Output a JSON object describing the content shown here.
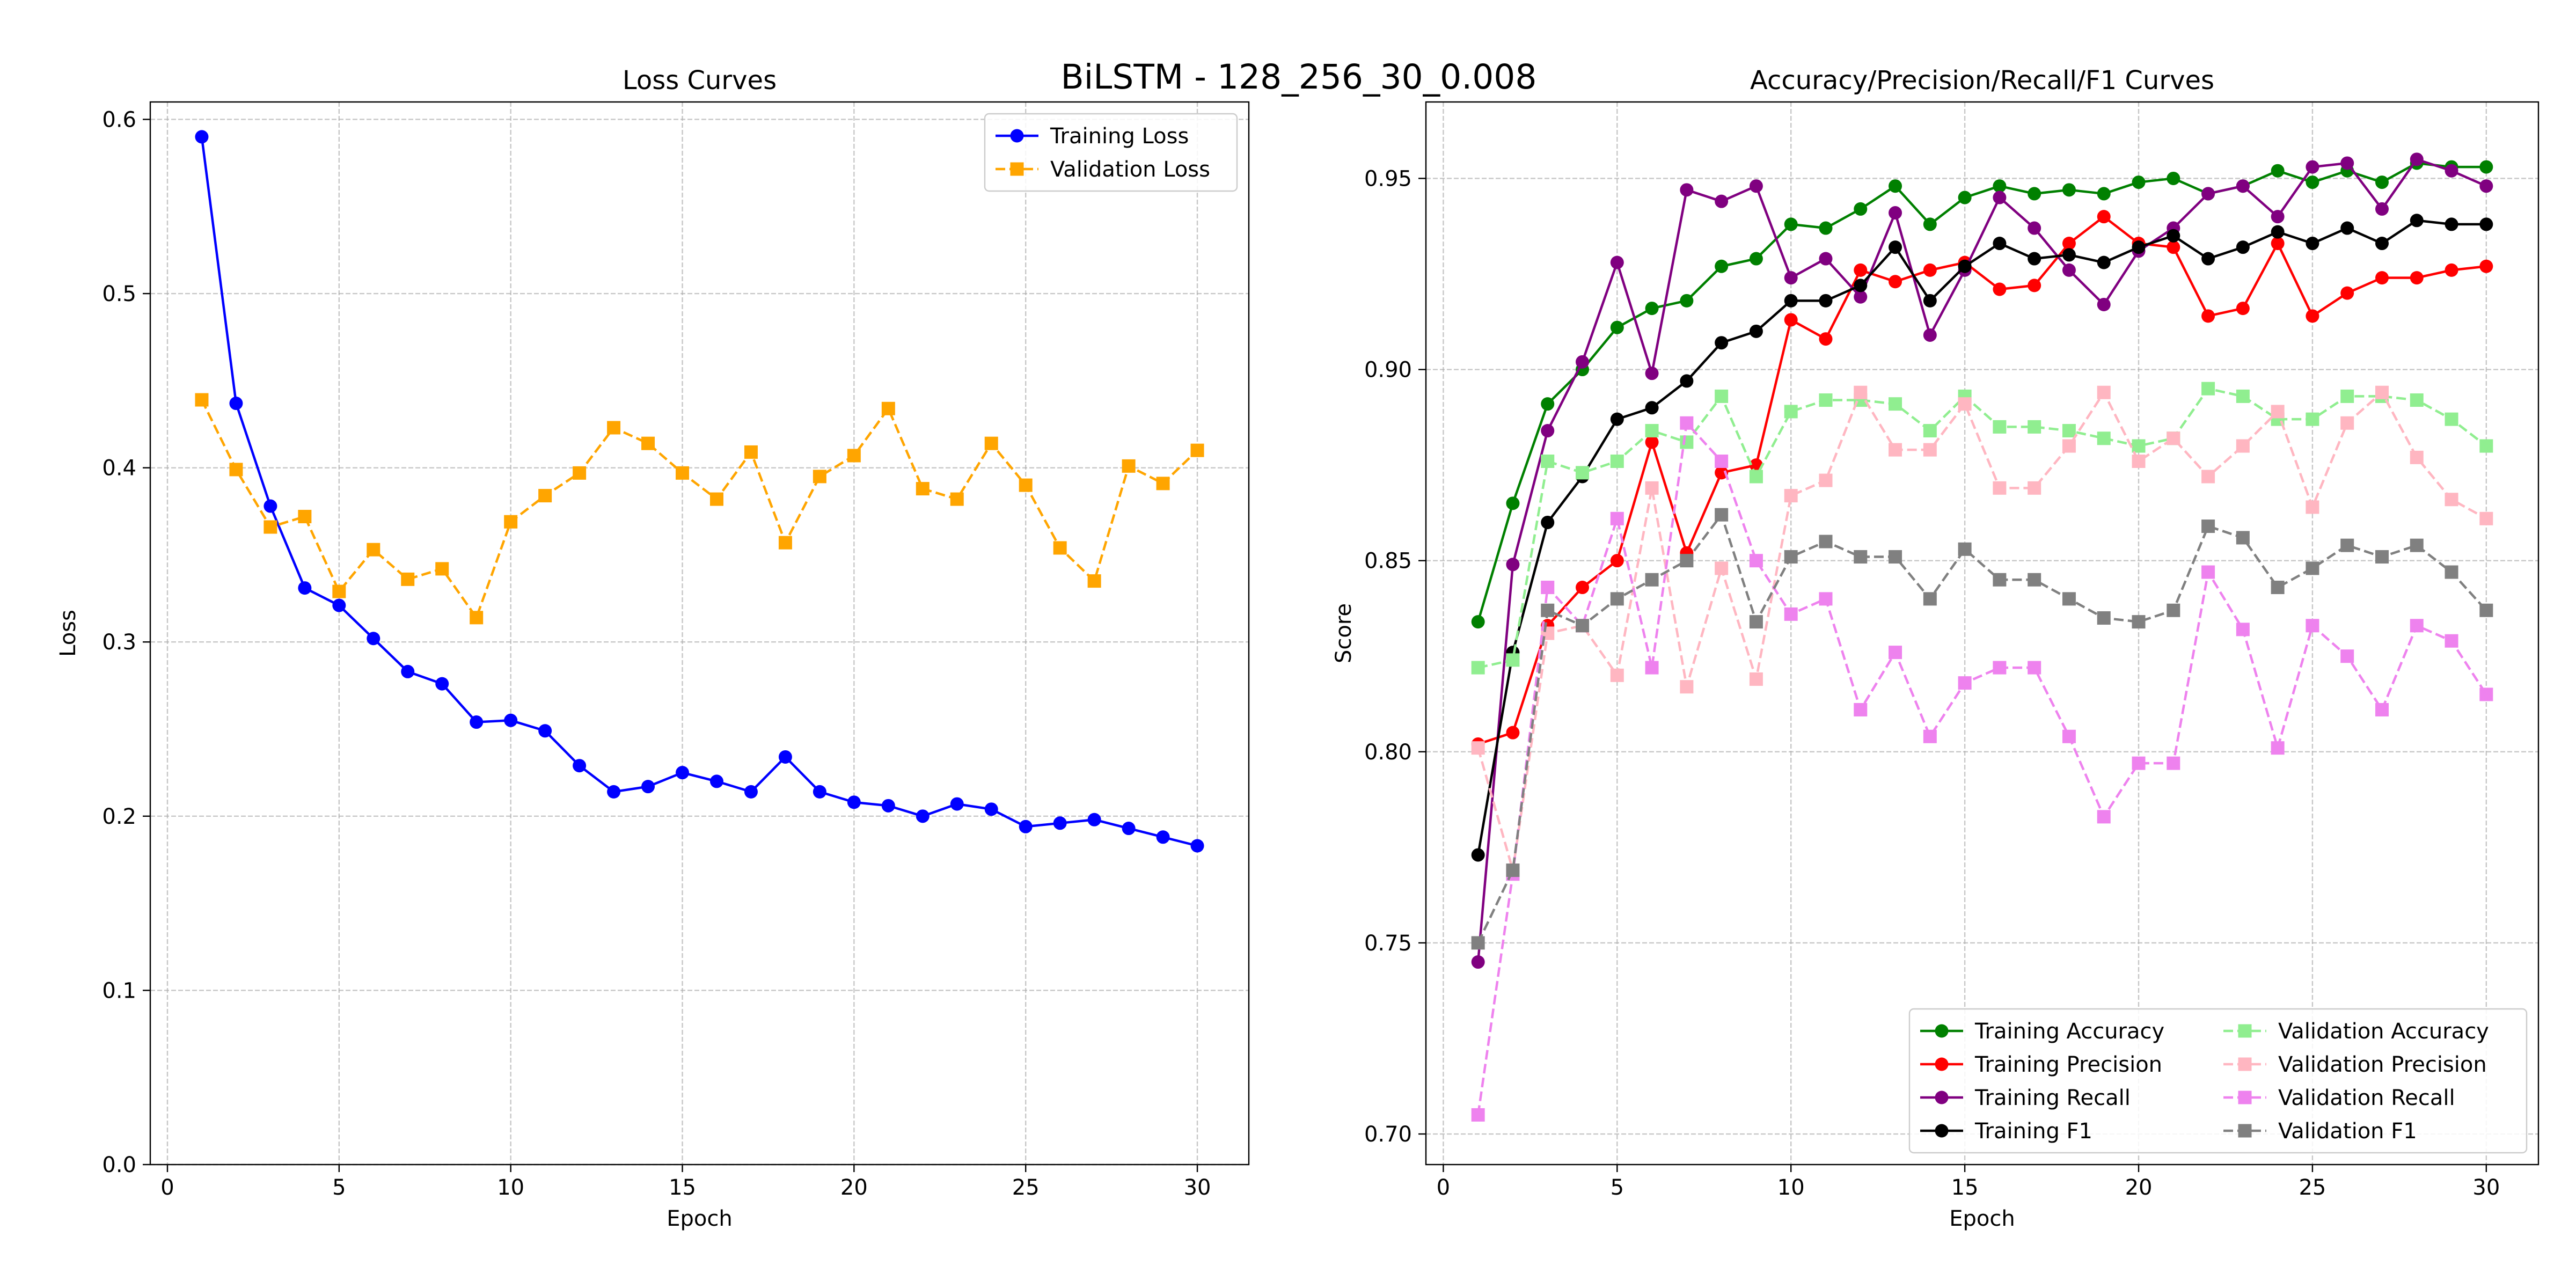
{
  "figure": {
    "suptitle": "BiLSTM - 128_256_30_0.008"
  },
  "chart_data": [
    {
      "type": "line",
      "title": "Loss Curves",
      "xlabel": "Epoch",
      "ylabel": "Loss",
      "xlim": [
        -0.5,
        31.5
      ],
      "ylim": [
        0.0,
        0.61
      ],
      "xticks": [
        0,
        5,
        10,
        15,
        20,
        25,
        30
      ],
      "yticks": [
        0.0,
        0.1,
        0.2,
        0.3,
        0.4,
        0.5,
        0.6
      ],
      "ytick_labels": [
        "0.0",
        "0.1",
        "0.2",
        "0.3",
        "0.4",
        "0.5",
        "0.6"
      ],
      "grid": true,
      "legend_position": "upper-right",
      "legend_columns": 1,
      "x": [
        1,
        2,
        3,
        4,
        5,
        6,
        7,
        8,
        9,
        10,
        11,
        12,
        13,
        14,
        15,
        16,
        17,
        18,
        19,
        20,
        21,
        22,
        23,
        24,
        25,
        26,
        27,
        28,
        29,
        30
      ],
      "series": [
        {
          "name": "Training Loss",
          "color": "#0000ff",
          "marker": "circle",
          "line_style": "solid",
          "values": [
            0.59,
            0.437,
            0.378,
            0.331,
            0.321,
            0.302,
            0.283,
            0.276,
            0.254,
            0.255,
            0.249,
            0.229,
            0.214,
            0.217,
            0.225,
            0.22,
            0.214,
            0.234,
            0.214,
            0.208,
            0.206,
            0.2,
            0.207,
            0.204,
            0.194,
            0.196,
            0.198,
            0.193,
            0.188,
            0.183
          ]
        },
        {
          "name": "Validation Loss",
          "color": "#ffa500",
          "marker": "square",
          "line_style": "dashed",
          "values": [
            0.439,
            0.399,
            0.366,
            0.372,
            0.329,
            0.353,
            0.336,
            0.342,
            0.314,
            0.369,
            0.384,
            0.397,
            0.423,
            0.414,
            0.397,
            0.382,
            0.409,
            0.357,
            0.395,
            0.407,
            0.434,
            0.388,
            0.382,
            0.414,
            0.39,
            0.354,
            0.335,
            0.401,
            0.391,
            0.41
          ]
        }
      ]
    },
    {
      "type": "line",
      "title": "Accuracy/Precision/Recall/F1 Curves",
      "xlabel": "Epoch",
      "ylabel": "Score",
      "xlim": [
        -0.5,
        31.5
      ],
      "ylim": [
        0.692,
        0.97
      ],
      "xticks": [
        0,
        5,
        10,
        15,
        20,
        25,
        30
      ],
      "yticks": [
        0.7,
        0.75,
        0.8,
        0.85,
        0.9,
        0.95
      ],
      "ytick_labels": [
        "0.70",
        "0.75",
        "0.80",
        "0.85",
        "0.90",
        "0.95"
      ],
      "grid": true,
      "legend_position": "lower-right",
      "legend_columns": 2,
      "x": [
        1,
        2,
        3,
        4,
        5,
        6,
        7,
        8,
        9,
        10,
        11,
        12,
        13,
        14,
        15,
        16,
        17,
        18,
        19,
        20,
        21,
        22,
        23,
        24,
        25,
        26,
        27,
        28,
        29,
        30
      ],
      "series": [
        {
          "name": "Training Accuracy",
          "color": "#008000",
          "marker": "circle",
          "line_style": "solid",
          "values": [
            0.834,
            0.865,
            0.891,
            0.9,
            0.911,
            0.916,
            0.918,
            0.927,
            0.929,
            0.938,
            0.937,
            0.942,
            0.948,
            0.938,
            0.945,
            0.948,
            0.946,
            0.947,
            0.946,
            0.949,
            0.95,
            0.946,
            0.948,
            0.952,
            0.949,
            0.952,
            0.949,
            0.954,
            0.953,
            0.953
          ]
        },
        {
          "name": "Training Precision",
          "color": "#ff0000",
          "marker": "circle",
          "line_style": "solid",
          "values": [
            0.802,
            0.805,
            0.833,
            0.843,
            0.85,
            0.881,
            0.852,
            0.873,
            0.875,
            0.913,
            0.908,
            0.926,
            0.923,
            0.926,
            0.928,
            0.921,
            0.922,
            0.933,
            0.94,
            0.933,
            0.932,
            0.914,
            0.916,
            0.933,
            0.914,
            0.92,
            0.924,
            0.924,
            0.926,
            0.927
          ]
        },
        {
          "name": "Training Recall",
          "color": "#800080",
          "marker": "circle",
          "line_style": "solid",
          "values": [
            0.745,
            0.849,
            0.884,
            0.902,
            0.928,
            0.899,
            0.947,
            0.944,
            0.948,
            0.924,
            0.929,
            0.919,
            0.941,
            0.909,
            0.926,
            0.945,
            0.937,
            0.926,
            0.917,
            0.931,
            0.937,
            0.946,
            0.948,
            0.94,
            0.953,
            0.954,
            0.942,
            0.955,
            0.952,
            0.948
          ]
        },
        {
          "name": "Training F1",
          "color": "#000000",
          "marker": "circle",
          "line_style": "solid",
          "values": [
            0.773,
            0.826,
            0.86,
            0.872,
            0.887,
            0.89,
            0.897,
            0.907,
            0.91,
            0.918,
            0.918,
            0.922,
            0.932,
            0.918,
            0.927,
            0.933,
            0.929,
            0.93,
            0.928,
            0.932,
            0.935,
            0.929,
            0.932,
            0.936,
            0.933,
            0.937,
            0.933,
            0.939,
            0.938,
            0.938
          ]
        },
        {
          "name": "Validation Accuracy",
          "color": "#90ee90",
          "marker": "square",
          "line_style": "dashed",
          "values": [
            0.822,
            0.824,
            0.876,
            0.873,
            0.876,
            0.884,
            0.881,
            0.893,
            0.872,
            0.889,
            0.892,
            0.892,
            0.891,
            0.884,
            0.893,
            0.885,
            0.885,
            0.884,
            0.882,
            0.88,
            0.882,
            0.895,
            0.893,
            0.887,
            0.887,
            0.893,
            0.893,
            0.892,
            0.887,
            0.88
          ]
        },
        {
          "name": "Validation Precision",
          "color": "#ffb6c1",
          "marker": "square",
          "line_style": "dashed",
          "values": [
            0.801,
            0.769,
            0.831,
            0.833,
            0.82,
            0.869,
            0.817,
            0.848,
            0.819,
            0.867,
            0.871,
            0.894,
            0.879,
            0.879,
            0.891,
            0.869,
            0.869,
            0.88,
            0.894,
            0.876,
            0.882,
            0.872,
            0.88,
            0.889,
            0.864,
            0.886,
            0.894,
            0.877,
            0.866,
            0.861
          ]
        },
        {
          "name": "Validation Recall",
          "color": "#ee82ee",
          "marker": "square",
          "line_style": "dashed",
          "values": [
            0.705,
            0.768,
            0.843,
            0.833,
            0.861,
            0.822,
            0.886,
            0.876,
            0.85,
            0.836,
            0.84,
            0.811,
            0.826,
            0.804,
            0.818,
            0.822,
            0.822,
            0.804,
            0.783,
            0.797,
            0.797,
            0.847,
            0.832,
            0.801,
            0.833,
            0.825,
            0.811,
            0.833,
            0.829,
            0.815
          ]
        },
        {
          "name": "Validation F1",
          "color": "#808080",
          "marker": "square",
          "line_style": "dashed",
          "values": [
            0.75,
            0.769,
            0.837,
            0.833,
            0.84,
            0.845,
            0.85,
            0.862,
            0.834,
            0.851,
            0.855,
            0.851,
            0.851,
            0.84,
            0.853,
            0.845,
            0.845,
            0.84,
            0.835,
            0.834,
            0.837,
            0.859,
            0.856,
            0.843,
            0.848,
            0.854,
            0.851,
            0.854,
            0.847,
            0.837
          ]
        }
      ]
    }
  ]
}
